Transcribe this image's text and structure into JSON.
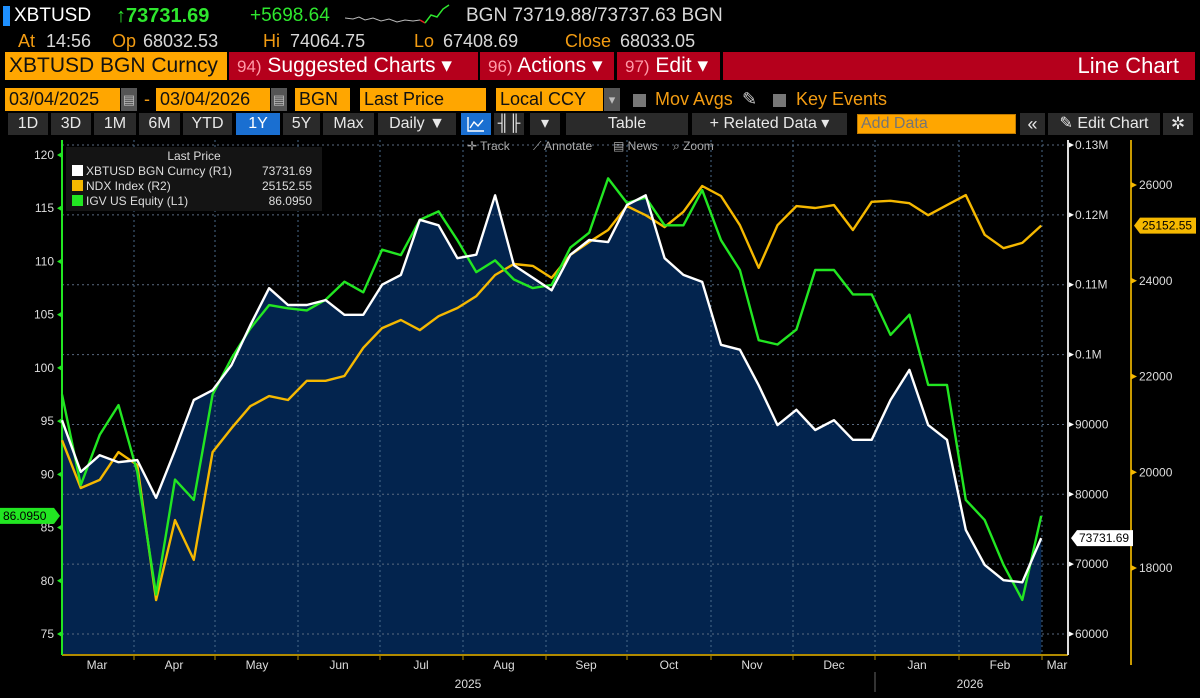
{
  "header": {
    "ticker": "XBTUSD",
    "last": "↑73731.69",
    "change": "+5698.64",
    "quote": "BGN 73719.88/73737.63 BGN",
    "at_label": "At",
    "at_value": "14:56",
    "open_label": "Op",
    "open_value": "68032.53",
    "high_label": "Hi",
    "high_value": "74064.75",
    "low_label": "Lo",
    "low_value": "67408.69",
    "close_label": "Close",
    "close_value": "68033.05"
  },
  "menubar": {
    "security": "XBTUSD BGN Curncy",
    "suggested_num": "94)",
    "suggested": "Suggested Charts ▾",
    "actions_num": "96)",
    "actions": "Actions ▾",
    "edit_num": "97)",
    "edit": "Edit ▾",
    "view_title": "Line Chart"
  },
  "settings": {
    "start_date": "03/04/2025",
    "end_date": "03/04/2026",
    "date_sep": "-",
    "source": "BGN",
    "field": "Last Price",
    "currency": "Local CCY",
    "mov_avgs": "Mov Avgs",
    "key_events": "Key Events"
  },
  "toolbar": {
    "ranges": [
      "1D",
      "3D",
      "1M",
      "6M",
      "YTD",
      "1Y",
      "5Y",
      "Max"
    ],
    "active_range": "1Y",
    "frequency": "Daily ▼",
    "table": "Table",
    "related_data": "+ Related Data ▾",
    "add_data_placeholder": "Add Data",
    "collapse": "«",
    "edit_chart": "Edit Chart",
    "icons": [
      "line-chart-icon",
      "bar-chart-icon",
      "dropdown-icon",
      "pencil-icon",
      "gear-icon"
    ]
  },
  "chart_tools": {
    "track": "Track",
    "annotate": "Annotate",
    "news": "News",
    "zoom": "Zoom"
  },
  "legend": {
    "title": "Last Price"
  },
  "colors": {
    "xbt": "#ffffff",
    "ndx": "#f5b800",
    "igv": "#22e622",
    "area": "#03244e",
    "menu_red": "#b5001c",
    "input_orange": "#ffa600",
    "active_blue": "#1a6fd1"
  },
  "chart_data": {
    "type": "line",
    "grid": true,
    "legend_position": "top-left",
    "x_ticks": [
      "Mar",
      "Apr",
      "May",
      "Jun",
      "Jul",
      "Aug",
      "Sep",
      "Oct",
      "Nov",
      "Dec",
      "Jan",
      "Feb",
      "Mar"
    ],
    "x_years": [
      "2025",
      "2026"
    ],
    "x": [
      "2025-03-04",
      "2025-03-11",
      "2025-03-18",
      "2025-03-25",
      "2025-04-01",
      "2025-04-08",
      "2025-04-15",
      "2025-04-22",
      "2025-04-29",
      "2025-05-06",
      "2025-05-13",
      "2025-05-20",
      "2025-05-27",
      "2025-06-03",
      "2025-06-10",
      "2025-06-17",
      "2025-06-24",
      "2025-07-01",
      "2025-07-08",
      "2025-07-15",
      "2025-07-22",
      "2025-07-29",
      "2025-08-05",
      "2025-08-12",
      "2025-08-19",
      "2025-08-26",
      "2025-09-02",
      "2025-09-09",
      "2025-09-16",
      "2025-09-23",
      "2025-09-30",
      "2025-10-07",
      "2025-10-14",
      "2025-10-21",
      "2025-10-28",
      "2025-11-04",
      "2025-11-11",
      "2025-11-18",
      "2025-11-25",
      "2025-12-02",
      "2025-12-09",
      "2025-12-16",
      "2025-12-23",
      "2025-12-30",
      "2026-01-06",
      "2026-01-13",
      "2026-01-20",
      "2026-01-27",
      "2026-02-03",
      "2026-02-10",
      "2026-02-17",
      "2026-02-24",
      "2026-03-03"
    ],
    "axes": {
      "L1": {
        "range": [
          73,
          122
        ],
        "ticks": [
          120,
          115,
          110,
          105,
          100,
          95,
          90,
          85,
          80,
          75
        ],
        "tick_labels": [
          "120",
          "115",
          "110",
          "105",
          "100",
          "95",
          "90",
          "85",
          "80",
          "75"
        ]
      },
      "R1": {
        "range": [
          58000,
          130000
        ],
        "ticks": [
          130000,
          120000,
          110000,
          100000,
          90000,
          80000,
          70000,
          60000
        ],
        "tick_labels": [
          "0.13M",
          "0.12M",
          "0.11M",
          "0.1M",
          "90000",
          "80000",
          "70000",
          "60000"
        ]
      },
      "R2": {
        "range": [
          16400,
          26800
        ],
        "ticks": [
          26000,
          24000,
          22000,
          20000,
          18000
        ],
        "tick_labels": [
          "26000",
          "24000",
          "22000",
          "20000",
          "18000"
        ]
      }
    },
    "series": [
      {
        "name": "XBTUSD BGN Curncy",
        "axis": "R1",
        "axis_label": "(R1)",
        "last": "73731.69",
        "color": "#ffffff",
        "area": true,
        "values": [
          90600,
          83200,
          85600,
          84600,
          84900,
          79500,
          86300,
          93500,
          94900,
          98500,
          104200,
          109500,
          107100,
          107100,
          107800,
          105700,
          105700,
          110000,
          111400,
          119300,
          118500,
          113800,
          114300,
          122800,
          112800,
          111000,
          109200,
          114300,
          116400,
          116100,
          121400,
          122800,
          113800,
          111400,
          110400,
          101400,
          100700,
          95600,
          89900,
          92100,
          89200,
          90600,
          87800,
          87800,
          93500,
          97800,
          89900,
          87800,
          74900,
          69900,
          67700,
          67400,
          73731.69
        ]
      },
      {
        "name": "NDX Index",
        "axis": "R2",
        "axis_label": "(R2)",
        "last": "25152.55",
        "color": "#f5b800",
        "values": [
          20670,
          19670,
          19840,
          20420,
          20150,
          17330,
          19000,
          18170,
          20420,
          20920,
          21380,
          21590,
          21510,
          21910,
          21910,
          22010,
          22600,
          23010,
          23180,
          22970,
          23260,
          23430,
          23680,
          24120,
          24350,
          24310,
          24060,
          24540,
          24810,
          25060,
          25560,
          25370,
          25120,
          25440,
          25980,
          25770,
          25160,
          24270,
          25160,
          25560,
          25520,
          25580,
          25060,
          25650,
          25670,
          25620,
          25370,
          25580,
          25790,
          24960,
          24680,
          24790,
          25152.55
        ]
      },
      {
        "name": "IGV US Equity",
        "axis": "L1",
        "axis_label": "(L1)",
        "last": "86.0950",
        "color": "#22e622",
        "values": [
          97.5,
          89.0,
          93.7,
          96.5,
          90.2,
          78.7,
          89.5,
          87.6,
          97.5,
          100.9,
          103.7,
          105.9,
          105.6,
          105.4,
          106.4,
          108.1,
          107.1,
          111.1,
          110.6,
          113.9,
          114.7,
          112.0,
          109.0,
          110.1,
          108.3,
          107.5,
          107.8,
          111.3,
          112.7,
          117.8,
          115.5,
          116.0,
          113.4,
          113.4,
          116.7,
          112.0,
          109.2,
          102.6,
          102.2,
          103.6,
          109.2,
          109.2,
          106.9,
          106.9,
          103.1,
          105.0,
          98.4,
          98.4,
          87.6,
          85.7,
          81.5,
          78.2,
          86.095
        ]
      }
    ]
  }
}
